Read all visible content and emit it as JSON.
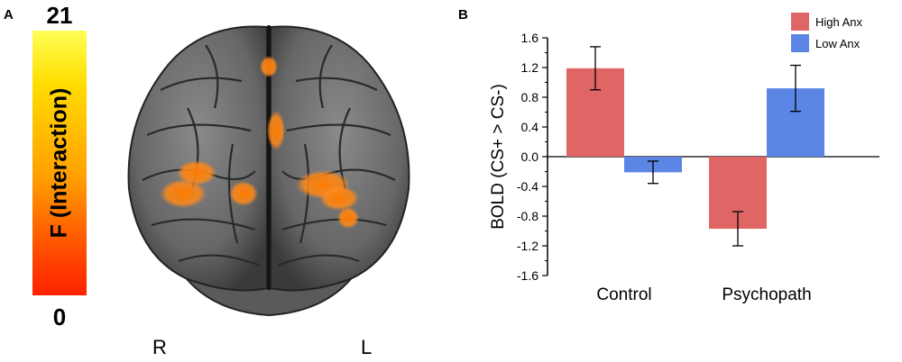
{
  "panel_a": {
    "letter": "A",
    "colorbar": {
      "max_label": "21",
      "min_label": "0",
      "label": "F (Interaction)"
    },
    "hemisphere_left_label": "R",
    "hemisphere_right_label": "L"
  },
  "panel_b": {
    "letter": "B"
  },
  "colors": {
    "high_anx": "#e06666",
    "low_anx": "#5b86e5"
  },
  "chart_data": {
    "type": "bar",
    "title": "",
    "categories": [
      "Control",
      "Psychopath"
    ],
    "ylabel": "BOLD (CS+ > CS-)",
    "xlabel": "",
    "ylim": [
      -1.6,
      1.6
    ],
    "yticks": [
      "1.6",
      "1.2",
      "0.8",
      "0.4",
      "0.0",
      "-0.4",
      "-0.8",
      "-1.2",
      "-1.6"
    ],
    "series": [
      {
        "name": "High Anx",
        "color": "#e06666",
        "values": [
          1.19,
          -0.97
        ],
        "error": [
          0.29,
          0.23
        ]
      },
      {
        "name": "Low Anx",
        "color": "#5b86e5",
        "values": [
          -0.21,
          0.92
        ],
        "error": [
          0.15,
          0.31
        ]
      }
    ],
    "legend": "top-right",
    "grid": false
  }
}
